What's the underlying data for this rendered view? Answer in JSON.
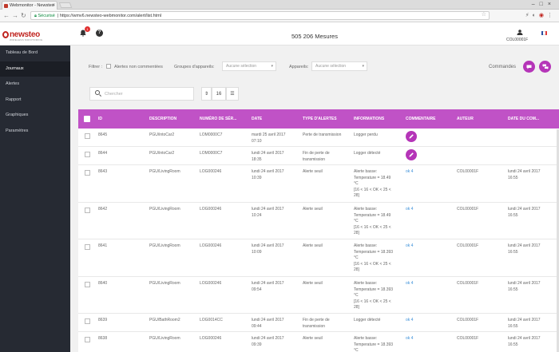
{
  "browser": {
    "tab_title": "Webmonitor - Newsteo",
    "secure_label": "Sécurisé",
    "url": "https://wmv6.newsteo-webmonitor.com/alert/list.html"
  },
  "app": {
    "logo_text": "newsteo",
    "logo_sub": "WIRELESS MONITORING",
    "bell_badge": "1",
    "measures_label": "505 206 Mesures",
    "user_id": "COL00001F"
  },
  "sidebar": {
    "items": [
      {
        "label": "Tableau de Bord"
      },
      {
        "label": "Journaux"
      },
      {
        "label": "Alertes"
      },
      {
        "label": "Rapport"
      },
      {
        "label": "Graphiques"
      },
      {
        "label": "Paramètres"
      }
    ]
  },
  "filters": {
    "filter_label": "Filtrer :",
    "uncommented_label": "Alertes non commentées",
    "groups_label": "Groupes d'appareils:",
    "groups_value": "Aucune sélection",
    "devices_label": "Appareils:",
    "devices_value": "Aucune sélection",
    "commands_label": "Commandes"
  },
  "search": {
    "placeholder": "Chercher",
    "page_size": "16"
  },
  "table": {
    "headers": [
      "ID",
      "DESCRIPTION",
      "NUMÉRO DE SÉR...",
      "DATE",
      "TYPE D'ALERTES",
      "INFORMATIONS",
      "COMMENTAIRE",
      "AUTEUR",
      "DATE DU COM..."
    ],
    "rows": [
      {
        "id": "8645",
        "desc": "PGU/intoCar2",
        "serial": "LOM0000C7",
        "date1": "mardi 25 avril 2017",
        "date2": "07:10",
        "type1": "Perte de transmission",
        "type2": "",
        "info": [
          "Logger perdu"
        ],
        "comment": "",
        "author": "",
        "cdate1": "",
        "cdate2": "",
        "editable": true
      },
      {
        "id": "8644",
        "desc": "PGU/intoCar2",
        "serial": "LOM0000C7",
        "date1": "lundi 24 avril 2017",
        "date2": "18:35",
        "type1": "Fin de perte de",
        "type2": "transmission",
        "info": [
          "Logger détecté"
        ],
        "comment": "",
        "author": "",
        "cdate1": "",
        "cdate2": "",
        "editable": true
      },
      {
        "id": "8643",
        "desc": "PGU/LivingRoom",
        "serial": "LOG000246",
        "date1": "lundi 24 avril 2017",
        "date2": "10:39",
        "type1": "Alerte seuil",
        "type2": "",
        "info": [
          "Alerte basse:",
          "Temperature = 18.49",
          "°C",
          "[16 < 16 < OK < 25 <",
          "28]"
        ],
        "comment": "ok 4",
        "author": "COL00001F",
        "cdate1": "lundi 24 avril 2017",
        "cdate2": "16:55",
        "editable": false
      },
      {
        "id": "8642",
        "desc": "PGU/LivingRoom",
        "serial": "LOG000246",
        "date1": "lundi 24 avril 2017",
        "date2": "10:24",
        "type1": "Alerte seuil",
        "type2": "",
        "info": [
          "Alerte basse:",
          "Temperature = 18.49",
          "°C",
          "[16 < 16 < OK < 25 <",
          "28]"
        ],
        "comment": "ok 4",
        "author": "COL00001F",
        "cdate1": "lundi 24 avril 2017",
        "cdate2": "16:55",
        "editable": false
      },
      {
        "id": "8641",
        "desc": "PGU/LivingRoom",
        "serial": "LOG000246",
        "date1": "lundi 24 avril 2017",
        "date2": "10:09",
        "type1": "Alerte seuil",
        "type2": "",
        "info": [
          "Alerte basse:",
          "Temperature = 18.393",
          "°C",
          "[16 < 16 < OK < 25 <",
          "28]"
        ],
        "comment": "ok 4",
        "author": "COL00001F",
        "cdate1": "lundi 24 avril 2017",
        "cdate2": "16:55",
        "editable": false
      },
      {
        "id": "8640",
        "desc": "PGU/LivingRoom",
        "serial": "LOG000246",
        "date1": "lundi 24 avril 2017",
        "date2": "09:54",
        "type1": "Alerte seuil",
        "type2": "",
        "info": [
          "Alerte basse:",
          "Temperature = 18.393",
          "°C",
          "[16 < 16 < OK < 25 <",
          "28]"
        ],
        "comment": "ok 4",
        "author": "COL00001F",
        "cdate1": "lundi 24 avril 2017",
        "cdate2": "16:55",
        "editable": false
      },
      {
        "id": "8639",
        "desc": "PGU/BathRoom2",
        "serial": "LOG0014CC",
        "date1": "lundi 24 avril 2017",
        "date2": "09:44",
        "type1": "Fin de perte de",
        "type2": "transmission",
        "info": [
          "Logger détecté"
        ],
        "comment": "ok 4",
        "author": "COL00001F",
        "cdate1": "lundi 24 avril 2017",
        "cdate2": "16:55",
        "editable": false
      },
      {
        "id": "8638",
        "desc": "PGU/LivingRoom",
        "serial": "LOG000246",
        "date1": "lundi 24 avril 2017",
        "date2": "09:39",
        "type1": "Alerte seuil",
        "type2": "",
        "info": [
          "Alerte basse:",
          "Temperature = 18.393",
          "°C"
        ],
        "comment": "ok 4",
        "author": "COL00001F",
        "cdate1": "lundi 24 avril 2017",
        "cdate2": "16:55",
        "editable": false
      }
    ]
  },
  "colors": {
    "accent": "#c052c6",
    "sidebar": "#262a33",
    "link": "#3a8fd8"
  }
}
